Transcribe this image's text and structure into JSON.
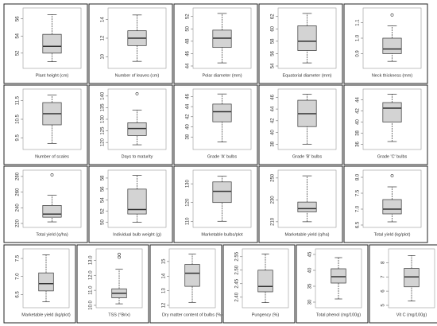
{
  "chart_data": [
    {
      "type": "box",
      "xlabel": "Plant height (cm)",
      "ylim": [
        50.5,
        57
      ],
      "yticks": [
        52,
        54,
        56
      ],
      "min": 51,
      "q1": 52,
      "median": 52.8,
      "q3": 54.2,
      "max": 56.5,
      "outliers": []
    },
    {
      "type": "box",
      "xlabel": "Number of leaves (cm)",
      "ylim": [
        9,
        15
      ],
      "yticks": [
        10,
        12,
        14
      ],
      "min": 9.5,
      "q1": 11.2,
      "median": 12,
      "q3": 12.8,
      "max": 14.5,
      "outliers": []
    },
    {
      "type": "box",
      "xlabel": "Polar diameter (mm)",
      "ylim": [
        44,
        53
      ],
      "yticks": [
        44,
        46,
        48,
        50,
        52
      ],
      "min": 44.5,
      "q1": 47,
      "median": 48.5,
      "q3": 49.8,
      "max": 52.5,
      "outliers": []
    },
    {
      "type": "box",
      "xlabel": "Equatorial diameter (mm)",
      "ylim": [
        54,
        63
      ],
      "yticks": [
        54,
        56,
        58,
        60,
        62
      ],
      "min": 54.5,
      "q1": 56.5,
      "median": 58,
      "q3": 60.5,
      "max": 62.5,
      "outliers": []
    },
    {
      "type": "box",
      "xlabel": "Neck thickness (mm)",
      "ylim": [
        0.82,
        1.18
      ],
      "yticks": [
        0.9,
        {
          "value": 1,
          "label": "1.0"
        },
        1.1
      ],
      "min": 0.85,
      "q1": 0.9,
      "median": 0.93,
      "q3": 1.0,
      "max": 1.08,
      "outliers": [
        1.15
      ]
    },
    {
      "type": "box",
      "xlabel": "Number of scales",
      "ylim": [
        9,
        12
      ],
      "yticks": [
        9.5,
        10.5,
        11.5
      ],
      "min": 9.2,
      "q1": 10.2,
      "median": 10.8,
      "q3": 11.4,
      "max": 11.8,
      "outliers": []
    },
    {
      "type": "box",
      "xlabel": "Days to maturity",
      "ylim": [
        118,
        142
      ],
      "yticks": [
        120,
        125,
        130,
        135,
        140
      ],
      "min": 119,
      "q1": 123,
      "median": 126,
      "q3": 128.5,
      "max": 134,
      "outliers": [
        141
      ]
    },
    {
      "type": "box",
      "xlabel": "Grade 'A' bulbs",
      "ylim": [
        36,
        47
      ],
      "yticks": [
        38,
        40,
        42,
        44,
        46
      ],
      "min": 37,
      "q1": 41,
      "median": 43,
      "q3": 44.5,
      "max": 46.5,
      "outliers": []
    },
    {
      "type": "box",
      "xlabel": "Grade 'B' bulbs",
      "ylim": [
        37.5,
        47
      ],
      "yticks": [
        38,
        40,
        42,
        44,
        46
      ],
      "min": 38,
      "q1": 41,
      "median": 43.2,
      "q3": 45.5,
      "max": 46.5,
      "outliers": []
    },
    {
      "type": "box",
      "xlabel": "Grade 'C' bulbs",
      "ylim": [
        35.5,
        45.5
      ],
      "yticks": [
        36,
        38,
        40,
        42,
        44
      ],
      "min": 36.5,
      "q1": 40,
      "median": 42.5,
      "q3": 43.5,
      "max": 45,
      "outliers": []
    },
    {
      "type": "box",
      "xlabel": "Total yield (q/ha)",
      "ylim": [
        218,
        285
      ],
      "yticks": [
        220,
        240,
        260,
        280
      ],
      "min": 222,
      "q1": 228,
      "median": 232,
      "q3": 243,
      "max": 256,
      "outliers": [
        282
      ]
    },
    {
      "type": "box",
      "xlabel": "Individual bulb weight (g)",
      "ylim": [
        49.5,
        59
      ],
      "yticks": [
        50,
        52,
        54,
        56,
        58
      ],
      "min": 50,
      "q1": 51.5,
      "median": 52.3,
      "q3": 56,
      "max": 58.5,
      "outliers": []
    },
    {
      "type": "box",
      "xlabel": "Marketable bulbs/plot",
      "ylim": [
        108,
        136
      ],
      "yticks": [
        110,
        120,
        130
      ],
      "min": 110,
      "q1": 120,
      "median": 126,
      "q3": 131,
      "max": 134,
      "outliers": []
    },
    {
      "type": "box",
      "xlabel": "Marketable yield (q/ha)",
      "ylim": [
        207,
        255
      ],
      "yticks": [
        210,
        230,
        250
      ],
      "min": 210,
      "q1": 219,
      "median": 222,
      "q3": 228,
      "max": 252,
      "outliers": []
    },
    {
      "type": "box",
      "xlabel": "Total yield (kg/plot)",
      "ylim": [
        6.5,
        8.15
      ],
      "yticks": [
        6.5,
        {
          "value": 7,
          "label": "7.0"
        },
        7.5,
        {
          "value": 8,
          "label": "8.0"
        }
      ],
      "min": 6.6,
      "q1": 6.85,
      "median": 7.0,
      "q3": 7.3,
      "max": 7.7,
      "outliers": [
        8.05
      ]
    },
    {
      "type": "box",
      "xlabel": "Marketable yield (kg/plot)",
      "ylim": [
        6.2,
        7.7
      ],
      "yticks": [
        6.5,
        {
          "value": 7,
          "label": "7.0"
        },
        7.5
      ],
      "min": 6.3,
      "q1": 6.6,
      "median": 6.8,
      "q3": 7.1,
      "max": 7.6,
      "outliers": []
    },
    {
      "type": "box",
      "xlabel": "TSS (°Brix)",
      "ylim": [
        10,
        13.6
      ],
      "yticks": [
        {
          "value": 10,
          "label": "10.0"
        },
        {
          "value": 11,
          "label": "11.0"
        },
        {
          "value": 12,
          "label": "12.0"
        },
        {
          "value": 13,
          "label": "13.0"
        }
      ],
      "min": 10.1,
      "q1": 10.5,
      "median": 10.8,
      "q3": 11.1,
      "max": 12.4,
      "outliers": [
        13.2,
        13.4
      ]
    },
    {
      "type": "box",
      "xlabel": "Dry matter content of bulbs (%)",
      "ylim": [
        12,
        15.7
      ],
      "yticks": [
        12,
        13,
        14,
        15
      ],
      "min": 12.2,
      "q1": 13.3,
      "median": 14.2,
      "q3": 14.8,
      "max": 15.5,
      "outliers": []
    },
    {
      "type": "box",
      "xlabel": "Pungency (%)",
      "ylim": [
        2.37,
        2.57
      ],
      "yticks": [
        {
          "value": 2.4,
          "label": "2.40"
        },
        2.45,
        {
          "value": 2.5,
          "label": "2.50"
        },
        2.55
      ],
      "min": 2.38,
      "q1": 2.42,
      "median": 2.44,
      "q3": 2.5,
      "max": 2.56,
      "outliers": []
    },
    {
      "type": "box",
      "xlabel": "Total phenol (mg/100g)",
      "ylim": [
        29,
        46
      ],
      "yticks": [
        30,
        35,
        40,
        45
      ],
      "min": 31,
      "q1": 36,
      "median": 38,
      "q3": 40.5,
      "max": 44,
      "outliers": []
    },
    {
      "type": "box",
      "xlabel": "Vit C (mg/100g)",
      "ylim": [
        5,
        8.8
      ],
      "yticks": [
        5,
        6,
        7,
        8
      ],
      "min": 5.3,
      "q1": 6.3,
      "median": 7,
      "q3": 7.6,
      "max": 8.5,
      "outliers": []
    }
  ]
}
